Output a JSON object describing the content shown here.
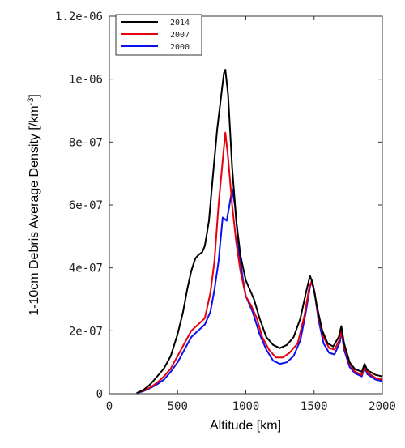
{
  "chart_data": {
    "type": "line",
    "title": "",
    "xlabel": "Altitude [km]",
    "ylabel_prefix": "1-10cm Debris Average Density [/km",
    "ylabel_sup": "-3",
    "ylabel_suffix": "]",
    "xlim": [
      0,
      2000
    ],
    "ylim": [
      0,
      1.2e-06
    ],
    "x_ticks": [
      0,
      500,
      1000,
      1500,
      2000
    ],
    "x_tick_labels": [
      "0",
      "500",
      "1000",
      "1500",
      "2000"
    ],
    "y_ticks": [
      0,
      2e-07,
      4e-07,
      6e-07,
      8e-07,
      1e-06,
      1.2e-06
    ],
    "y_tick_labels": [
      "0",
      "2e-07",
      "4e-07",
      "6e-07",
      "8e-07",
      "1e-06",
      "1.2e-06"
    ],
    "grid": false,
    "legend_position": "top-left",
    "series": [
      {
        "name": "2014",
        "color": "#000000",
        "points": [
          [
            200,
            2e-09
          ],
          [
            250,
            1.2e-08
          ],
          [
            300,
            3e-08
          ],
          [
            350,
            5.5e-08
          ],
          [
            400,
            8e-08
          ],
          [
            450,
            1.2e-07
          ],
          [
            500,
            1.9e-07
          ],
          [
            540,
            2.6e-07
          ],
          [
            570,
            3.3e-07
          ],
          [
            600,
            3.9e-07
          ],
          [
            630,
            4.3e-07
          ],
          [
            650,
            4.4e-07
          ],
          [
            680,
            4.5e-07
          ],
          [
            700,
            4.7e-07
          ],
          [
            730,
            5.5e-07
          ],
          [
            760,
            7e-07
          ],
          [
            790,
            8.4e-07
          ],
          [
            820,
            9.5e-07
          ],
          [
            840,
            1.02e-06
          ],
          [
            850,
            1.03e-06
          ],
          [
            870,
            9.5e-07
          ],
          [
            900,
            7.2e-07
          ],
          [
            930,
            5.5e-07
          ],
          [
            960,
            4.4e-07
          ],
          [
            1000,
            3.6e-07
          ],
          [
            1030,
            3.3e-07
          ],
          [
            1060,
            3e-07
          ],
          [
            1100,
            2.4e-07
          ],
          [
            1150,
            1.8e-07
          ],
          [
            1200,
            1.55e-07
          ],
          [
            1250,
            1.45e-07
          ],
          [
            1300,
            1.55e-07
          ],
          [
            1350,
            1.8e-07
          ],
          [
            1400,
            2.4e-07
          ],
          [
            1440,
            3.2e-07
          ],
          [
            1470,
            3.75e-07
          ],
          [
            1490,
            3.5e-07
          ],
          [
            1520,
            2.8e-07
          ],
          [
            1560,
            2e-07
          ],
          [
            1600,
            1.6e-07
          ],
          [
            1640,
            1.5e-07
          ],
          [
            1680,
            1.8e-07
          ],
          [
            1700,
            2.15e-07
          ],
          [
            1720,
            1.6e-07
          ],
          [
            1760,
            1e-07
          ],
          [
            1800,
            7.8e-08
          ],
          [
            1850,
            7e-08
          ],
          [
            1870,
            9.5e-08
          ],
          [
            1890,
            7.5e-08
          ],
          [
            1950,
            6e-08
          ],
          [
            2000,
            5.5e-08
          ]
        ]
      },
      {
        "name": "2007",
        "color": "#e8000b",
        "points": [
          [
            200,
            2e-09
          ],
          [
            250,
            1e-08
          ],
          [
            300,
            2e-08
          ],
          [
            350,
            3.5e-08
          ],
          [
            400,
            5.5e-08
          ],
          [
            450,
            8e-08
          ],
          [
            500,
            1.2e-07
          ],
          [
            550,
            1.6e-07
          ],
          [
            600,
            2e-07
          ],
          [
            650,
            2.2e-07
          ],
          [
            700,
            2.4e-07
          ],
          [
            740,
            3.2e-07
          ],
          [
            770,
            4.2e-07
          ],
          [
            800,
            6e-07
          ],
          [
            830,
            7.4e-07
          ],
          [
            850,
            8.3e-07
          ],
          [
            870,
            7.5e-07
          ],
          [
            900,
            6e-07
          ],
          [
            930,
            4.8e-07
          ],
          [
            960,
            3.9e-07
          ],
          [
            1000,
            3.1e-07
          ],
          [
            1040,
            2.8e-07
          ],
          [
            1080,
            2.4e-07
          ],
          [
            1120,
            1.8e-07
          ],
          [
            1170,
            1.4e-07
          ],
          [
            1220,
            1.15e-07
          ],
          [
            1270,
            1.15e-07
          ],
          [
            1320,
            1.3e-07
          ],
          [
            1380,
            1.6e-07
          ],
          [
            1430,
            2.5e-07
          ],
          [
            1465,
            3.4e-07
          ],
          [
            1480,
            3.55e-07
          ],
          [
            1500,
            3.3e-07
          ],
          [
            1530,
            2.5e-07
          ],
          [
            1570,
            1.8e-07
          ],
          [
            1610,
            1.45e-07
          ],
          [
            1650,
            1.4e-07
          ],
          [
            1690,
            1.75e-07
          ],
          [
            1700,
            2.05e-07
          ],
          [
            1720,
            1.5e-07
          ],
          [
            1760,
            9.5e-08
          ],
          [
            1800,
            7e-08
          ],
          [
            1850,
            6e-08
          ],
          [
            1870,
            9e-08
          ],
          [
            1890,
            6.8e-08
          ],
          [
            1950,
            5e-08
          ],
          [
            2000,
            4.5e-08
          ]
        ]
      },
      {
        "name": "2000",
        "color": "#0a10ee",
        "points": [
          [
            200,
            2e-09
          ],
          [
            250,
            8e-09
          ],
          [
            300,
            1.8e-08
          ],
          [
            350,
            3e-08
          ],
          [
            400,
            4.5e-08
          ],
          [
            450,
            7e-08
          ],
          [
            500,
            1e-07
          ],
          [
            550,
            1.4e-07
          ],
          [
            600,
            1.8e-07
          ],
          [
            650,
            2e-07
          ],
          [
            700,
            2.2e-07
          ],
          [
            740,
            2.6e-07
          ],
          [
            770,
            3.3e-07
          ],
          [
            800,
            4.2e-07
          ],
          [
            830,
            5.6e-07
          ],
          [
            860,
            5.5e-07
          ],
          [
            880,
            6e-07
          ],
          [
            900,
            6.5e-07
          ],
          [
            920,
            6e-07
          ],
          [
            950,
            4.5e-07
          ],
          [
            980,
            3.6e-07
          ],
          [
            1000,
            3.1e-07
          ],
          [
            1050,
            2.6e-07
          ],
          [
            1100,
            1.9e-07
          ],
          [
            1150,
            1.4e-07
          ],
          [
            1200,
            1.05e-07
          ],
          [
            1250,
            9.5e-08
          ],
          [
            1300,
            1e-07
          ],
          [
            1350,
            1.2e-07
          ],
          [
            1400,
            1.7e-07
          ],
          [
            1440,
            2.6e-07
          ],
          [
            1470,
            3.4e-07
          ],
          [
            1485,
            3.6e-07
          ],
          [
            1505,
            3.2e-07
          ],
          [
            1530,
            2.4e-07
          ],
          [
            1570,
            1.6e-07
          ],
          [
            1610,
            1.3e-07
          ],
          [
            1650,
            1.25e-07
          ],
          [
            1690,
            1.65e-07
          ],
          [
            1700,
            2e-07
          ],
          [
            1720,
            1.4e-07
          ],
          [
            1760,
            8.5e-08
          ],
          [
            1800,
            6.5e-08
          ],
          [
            1850,
            5.5e-08
          ],
          [
            1870,
            8.5e-08
          ],
          [
            1890,
            6.2e-08
          ],
          [
            1950,
            4.5e-08
          ],
          [
            2000,
            4e-08
          ]
        ]
      }
    ]
  }
}
